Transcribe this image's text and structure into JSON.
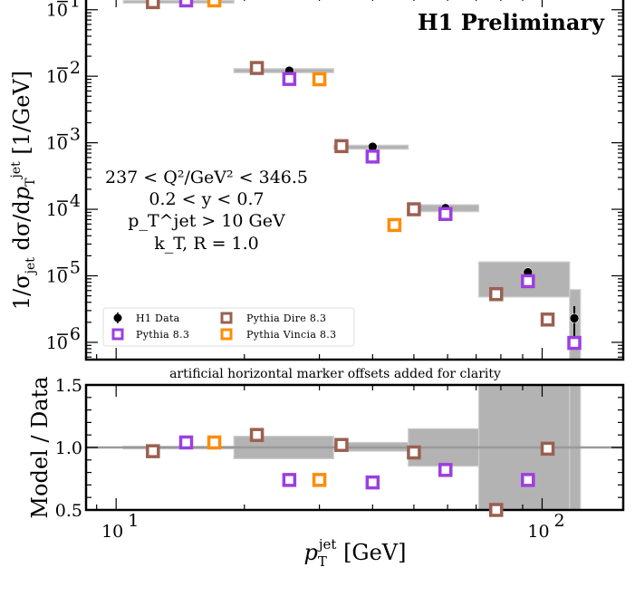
{
  "chart_data": [
    {
      "panel": "main",
      "type": "scatter",
      "title": "H1 Preliminary",
      "xlabel": "p_T^jet [GeV]",
      "ylabel": "1/σ_jet dσ/dp_T^jet [1/GeV]",
      "xscale": "log",
      "yscale": "log",
      "xlim": [
        8.5,
        155
      ],
      "ylim": [
        5.5e-07,
        0.14
      ],
      "yticks": [
        {
          "value": 0.1,
          "label": "10",
          "exp": "−1"
        },
        {
          "value": 0.01,
          "label": "10",
          "exp": "−2"
        },
        {
          "value": 0.001,
          "label": "10",
          "exp": "−3"
        },
        {
          "value": 0.0001,
          "label": "10",
          "exp": "−4"
        },
        {
          "value": 1e-05,
          "label": "10",
          "exp": "−5"
        },
        {
          "value": 1e-06,
          "label": "10",
          "exp": "−6"
        }
      ],
      "annotations": [
        "237 < Q²/GeV² < 346.5",
        "0.2 < y < 0.7",
        "p_T^jet > 10 GeV",
        "k_T, R = 1.0"
      ],
      "bins": [
        {
          "xlo": 10.4,
          "xhi": 18.9,
          "ylo": 0.128,
          "yhi": 0.138
        },
        {
          "xlo": 18.9,
          "xhi": 32.4,
          "ylo": 0.0113,
          "yhi": 0.013
        },
        {
          "xlo": 32.4,
          "xhi": 48.5,
          "ylo": 0.0008,
          "yhi": 0.00092
        },
        {
          "xlo": 48.5,
          "xhi": 71.0,
          "ylo": 9.2e-05,
          "yhi": 0.000117
        },
        {
          "xlo": 71.0,
          "xhi": 116.0,
          "ylo": 4.8e-06,
          "yhi": 1.62e-05
        },
        {
          "xlo": 116.0,
          "xhi": 123.0,
          "ylo": 5.5e-07,
          "yhi": 6.2e-06
        }
      ],
      "series": [
        {
          "name": "H1 Data",
          "marker": "circle",
          "color": "#000000",
          "x": [
            14.6,
            25.5,
            40.0,
            59.3,
            92.6,
            119.0
          ],
          "y": [
            0.133,
            0.0121,
            0.00087,
            0.000104,
            1.13e-05,
            2.3e-06
          ],
          "yerr": [
            0,
            0,
            0,
            0,
            8e-07,
            1.2e-06
          ]
        },
        {
          "name": "Pythia 8.3",
          "marker": "square",
          "color": "#9b3fe0",
          "x": [
            14.6,
            25.5,
            40.0,
            59.3,
            92.6,
            119.0
          ],
          "y": [
            0.138,
            0.0091,
            0.00062,
            8.5e-05,
            8.3e-06,
            9.8e-07
          ]
        },
        {
          "name": "Pythia Dire 8.3",
          "marker": "square",
          "color": "#9a6050",
          "x": [
            12.2,
            21.4,
            33.8,
            50.0,
            78.0,
            103.0
          ],
          "y": [
            0.13,
            0.0133,
            0.00089,
            0.0001,
            5.3e-06,
            2.2e-06
          ]
        },
        {
          "name": "Pythia Vincia 8.3",
          "marker": "square",
          "color": "#ff8c00",
          "x": [
            17.0,
            30.0,
            45.0
          ],
          "y": [
            0.138,
            0.009,
            5.8e-05
          ]
        }
      ],
      "legend": {
        "placement": "lower-left",
        "entries": [
          {
            "label": "H1 Data",
            "marker": "circle",
            "color": "#000000"
          },
          {
            "label": "Pythia Dire 8.3",
            "marker": "square",
            "color": "#9a6050"
          },
          {
            "label": "Pythia 8.3",
            "marker": "square",
            "color": "#9b3fe0"
          },
          {
            "label": "Pythia Vincia 8.3",
            "marker": "square",
            "color": "#ff8c00"
          }
        ]
      },
      "note": "artificial horizontal marker offsets added for clarity"
    },
    {
      "panel": "ratio",
      "type": "scatter",
      "xlabel": "p_T^jet [GeV]",
      "ylabel": "Model / Data",
      "xscale": "log",
      "xlim": [
        8.5,
        155
      ],
      "ylim": [
        0.5,
        1.5
      ],
      "yticks": [
        "0.5",
        "1.0",
        "1.5"
      ],
      "xticks": [
        {
          "value": 10,
          "label": "10",
          "exp": "1"
        },
        {
          "value": 100,
          "label": "10",
          "exp": "2"
        }
      ],
      "reference_line": 1.0,
      "bands": [
        {
          "xlo": 10.4,
          "xhi": 18.9,
          "lo": 0.99,
          "hi": 1.01
        },
        {
          "xlo": 18.9,
          "xhi": 32.4,
          "lo": 0.91,
          "hi": 1.09
        },
        {
          "xlo": 32.4,
          "xhi": 48.5,
          "lo": 0.97,
          "hi": 1.04
        },
        {
          "xlo": 48.5,
          "xhi": 71.0,
          "lo": 0.85,
          "hi": 1.15
        },
        {
          "xlo": 71.0,
          "xhi": 116.0,
          "lo": 0.5,
          "hi": 1.5
        },
        {
          "xlo": 116.0,
          "xhi": 123.0,
          "lo": 0.5,
          "hi": 1.5
        }
      ],
      "series": [
        {
          "name": "Pythia 8.3",
          "color": "#9b3fe0",
          "x": [
            14.6,
            25.5,
            40.0,
            59.3,
            92.6
          ],
          "y": [
            1.04,
            0.74,
            0.72,
            0.82,
            0.74
          ]
        },
        {
          "name": "Pythia Dire 8.3",
          "color": "#9a6050",
          "x": [
            12.2,
            21.4,
            33.8,
            50.0,
            78.0,
            103.0
          ],
          "y": [
            0.97,
            1.1,
            1.02,
            0.96,
            0.48,
            0.99
          ]
        },
        {
          "name": "Pythia Vincia 8.3",
          "color": "#ff8c00",
          "x": [
            17.0,
            30.0
          ],
          "y": [
            1.04,
            0.74
          ]
        }
      ]
    }
  ]
}
